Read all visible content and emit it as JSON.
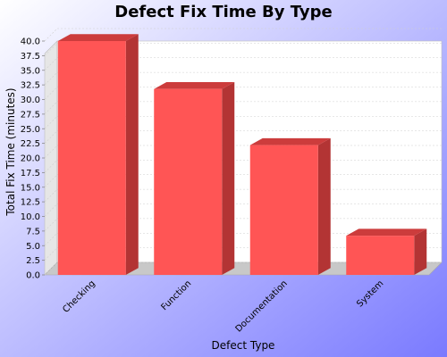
{
  "chart_data": {
    "type": "bar",
    "title": "Defect Fix Time By Type",
    "xlabel": "Defect Type",
    "ylabel": "Total Fix Time (minutes)",
    "categories": [
      "Checking",
      "Function",
      "Documentation",
      "System"
    ],
    "values": [
      40.0,
      31.8,
      22.2,
      6.7
    ],
    "ylim": [
      0,
      40
    ],
    "yticks": [
      "0.0",
      "2.5",
      "5.0",
      "7.5",
      "10.0",
      "12.5",
      "15.0",
      "17.5",
      "20.0",
      "22.5",
      "25.0",
      "27.5",
      "30.0",
      "32.5",
      "35.0",
      "37.5",
      "40.0"
    ],
    "bar_style": "3d",
    "legend": "none",
    "grid": true,
    "colors": {
      "bar_front": "#ff5555",
      "bar_top": "#cc3c3c",
      "bar_side": "#b33434",
      "plot_bg": "#ffffff",
      "plot_floor": "#c8c8c8",
      "plot_wall": "#e6e6e6",
      "gridline": "#cfcfcf",
      "background_start": "#ffffff",
      "background_end": "#7a7aff",
      "text": "#000000"
    }
  }
}
